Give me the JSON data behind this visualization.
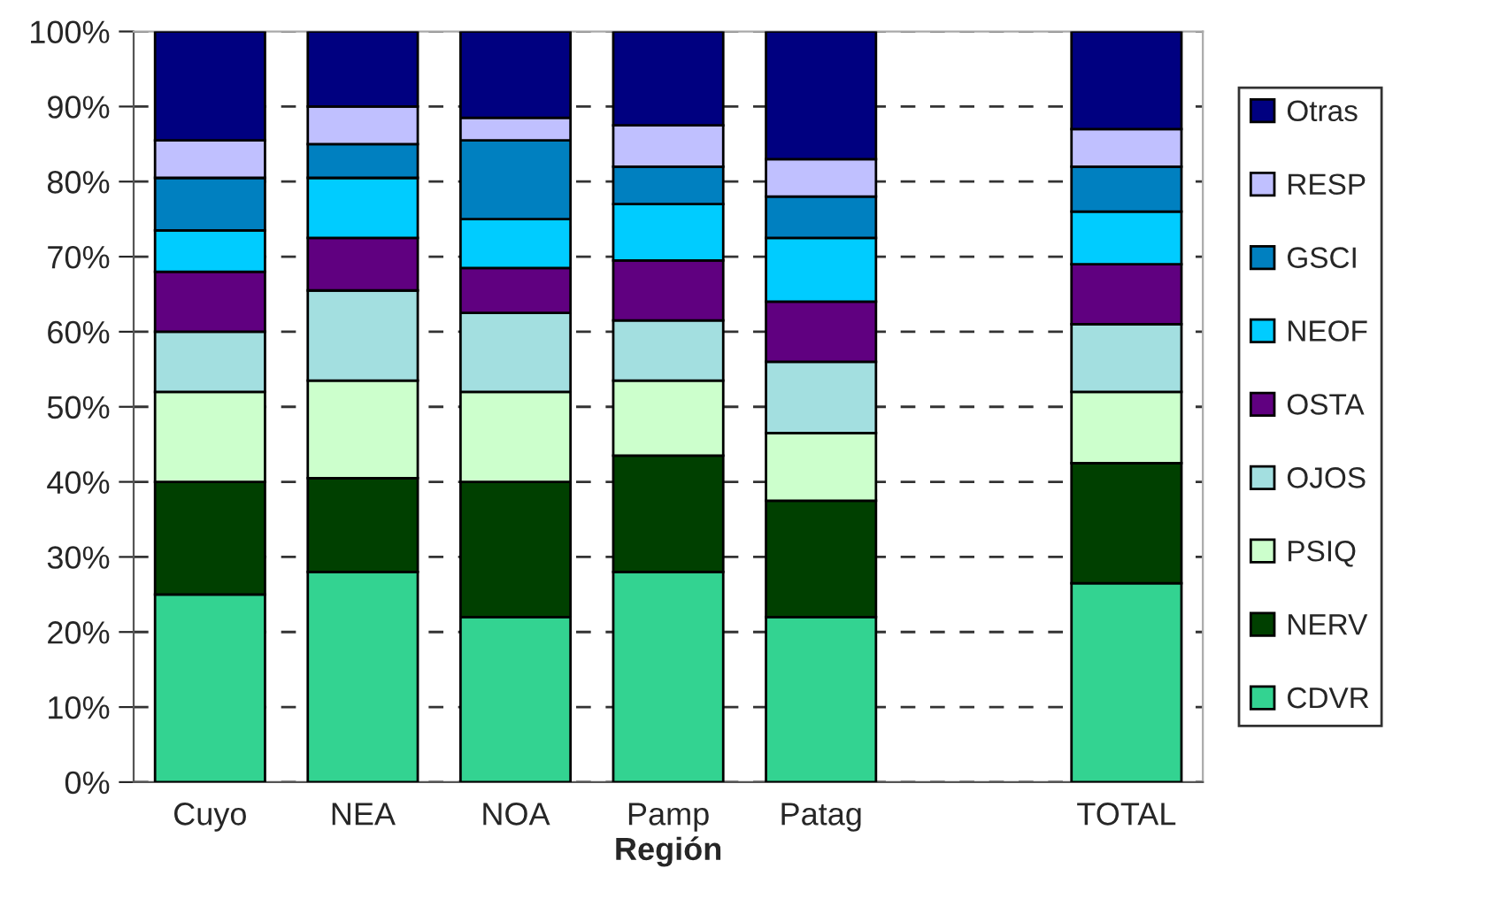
{
  "chart_data": {
    "type": "bar",
    "stacked": true,
    "xlabel": "Región",
    "categories": [
      "Cuyo",
      "NEA",
      "NOA",
      "Pamp",
      "Patag",
      null,
      "TOTAL"
    ],
    "series": [
      {
        "name": "CDVR",
        "color": "#33d391",
        "values": [
          25,
          28,
          22,
          28,
          22,
          null,
          26.5
        ]
      },
      {
        "name": "NERV",
        "color": "#004000",
        "values": [
          15,
          12.5,
          18,
          15.5,
          15.5,
          null,
          16
        ]
      },
      {
        "name": "PSIQ",
        "color": "#ccffcc",
        "values": [
          12,
          13,
          12,
          10,
          9,
          null,
          9.5
        ]
      },
      {
        "name": "OJOS",
        "color": "#a3dfe0",
        "values": [
          8,
          12,
          10.5,
          8,
          9.5,
          null,
          9
        ]
      },
      {
        "name": "OSTA",
        "color": "#600080",
        "values": [
          8,
          7,
          6,
          8,
          8,
          null,
          8
        ]
      },
      {
        "name": "NEOF",
        "color": "#00ccff",
        "values": [
          5.5,
          8,
          6.5,
          7.5,
          8.5,
          null,
          7
        ]
      },
      {
        "name": "GSCI",
        "color": "#0080c0",
        "values": [
          7,
          4.5,
          10.5,
          5,
          5.5,
          null,
          6
        ]
      },
      {
        "name": "RESP",
        "color": "#c0c0ff",
        "values": [
          5,
          5,
          3,
          5.5,
          5,
          null,
          5
        ]
      },
      {
        "name": "Otras",
        "color": "#000080",
        "values": [
          14.5,
          10,
          11.5,
          12.5,
          17,
          null,
          13
        ]
      }
    ],
    "ylim": [
      0,
      100
    ],
    "yticks": [
      {
        "value": 0,
        "label": "0%"
      },
      {
        "value": 10,
        "label": "10%"
      },
      {
        "value": 20,
        "label": "20%"
      },
      {
        "value": 30,
        "label": "30%"
      },
      {
        "value": 40,
        "label": "40%"
      },
      {
        "value": 50,
        "label": "50%"
      },
      {
        "value": 60,
        "label": "60%"
      },
      {
        "value": 70,
        "label": "70%"
      },
      {
        "value": 80,
        "label": "80%"
      },
      {
        "value": 90,
        "label": "90%"
      },
      {
        "value": 100,
        "label": "100%"
      }
    ],
    "grid": "y",
    "legend": "right"
  }
}
